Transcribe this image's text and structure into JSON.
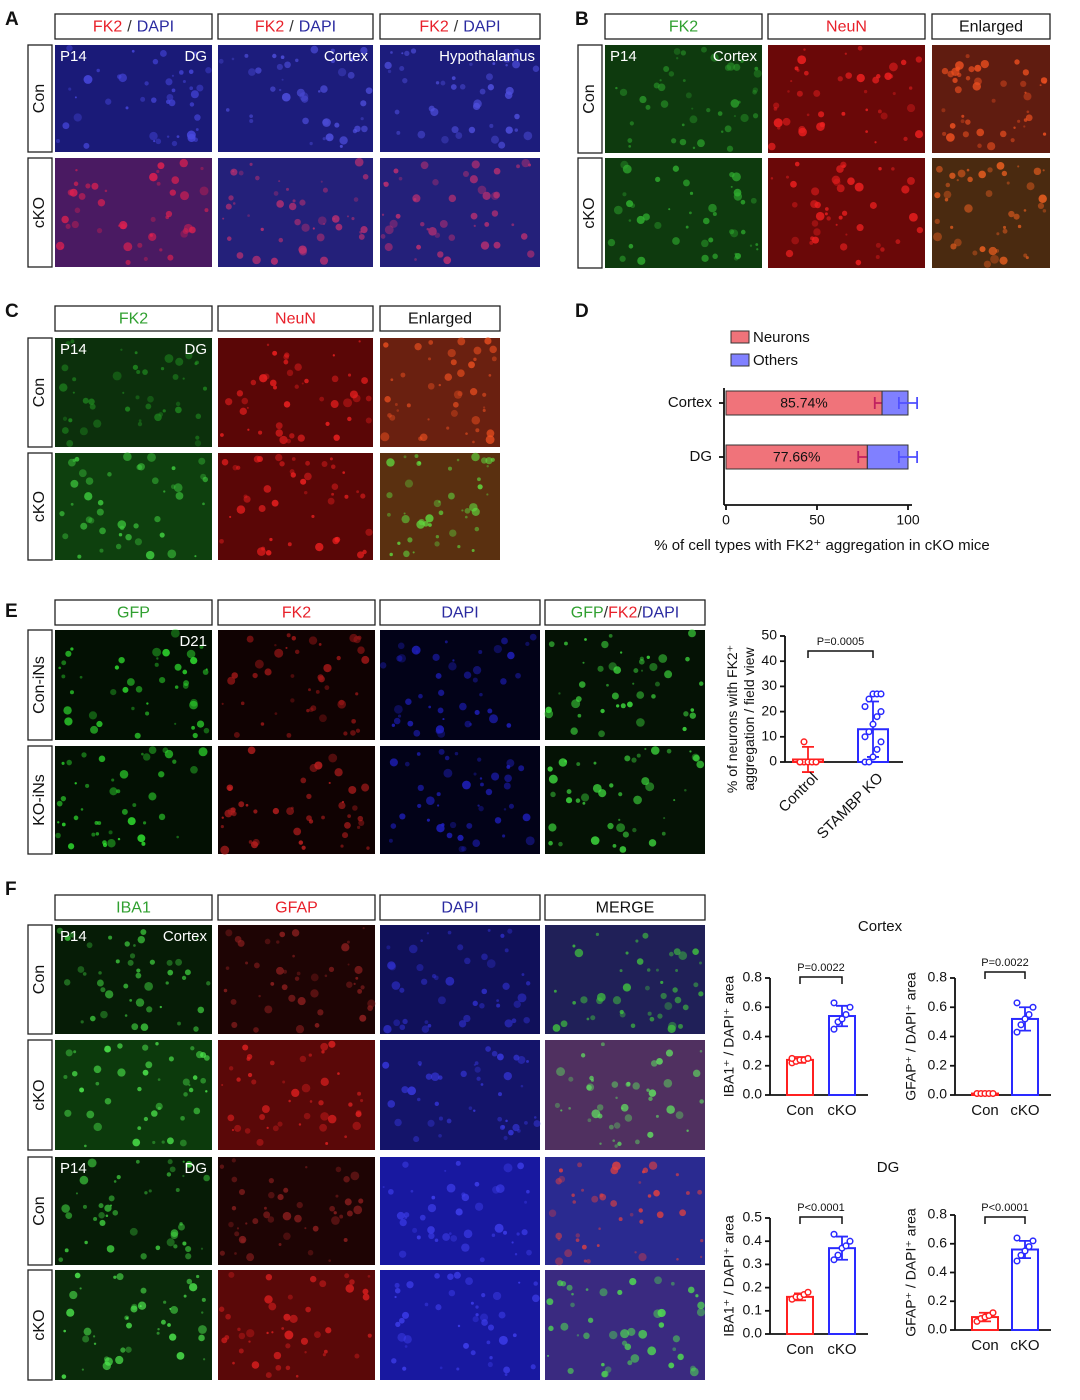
{
  "panels": [
    {
      "letter": "A",
      "headers": [
        [
          "FK2",
          "/",
          "DAPI"
        ],
        [
          "FK2",
          "/",
          "DAPI"
        ],
        [
          "FK2",
          "/",
          "DAPI"
        ]
      ],
      "rows": [
        "Con",
        "cKO"
      ],
      "image_labels": [
        "P14",
        "DG",
        "Cortex",
        "Hypothalamus"
      ]
    },
    {
      "letter": "B",
      "headers": [
        [
          "FK2"
        ],
        [
          "NeuN"
        ],
        [
          "Enlarged"
        ]
      ],
      "rows": [
        "Con",
        "cKO"
      ],
      "image_labels": [
        "P14",
        "Cortex"
      ]
    },
    {
      "letter": "C",
      "headers": [
        [
          "FK2"
        ],
        [
          "NeuN"
        ],
        [
          "Enlarged"
        ]
      ],
      "rows": [
        "Con",
        "cKO"
      ],
      "image_labels": [
        "P14",
        "DG"
      ]
    },
    {
      "letter": "D"
    },
    {
      "letter": "E",
      "headers": [
        [
          "GFP"
        ],
        [
          "FK2"
        ],
        [
          "DAPI"
        ],
        [
          "GFP",
          "/",
          "FK2",
          "/",
          "DAPI"
        ]
      ],
      "rows": [
        "Con-iNs",
        "KO-iNs"
      ],
      "image_labels": [
        "D21"
      ]
    },
    {
      "letter": "F",
      "headers": [
        [
          "IBA1"
        ],
        [
          "GFAP"
        ],
        [
          "DAPI"
        ],
        [
          "MERGE"
        ]
      ],
      "rows": [
        "Con",
        "cKO",
        "Con",
        "cKO"
      ],
      "image_labels": [
        "P14",
        "Cortex",
        "P14",
        "DG"
      ],
      "chart_titles": [
        "Cortex",
        "DG"
      ]
    }
  ],
  "chart_data": [
    {
      "type": "barh",
      "categories": [
        "Cortex",
        "DG"
      ],
      "series": [
        {
          "name": "Neurons",
          "color": "#f0737a",
          "values": [
            85.74,
            77.66
          ],
          "errors": [
            4,
            5
          ],
          "value_labels": [
            "85.74%",
            "77.66%"
          ]
        },
        {
          "name": "Others",
          "color": "#8080ff",
          "values": [
            14.26,
            22.34
          ],
          "errors": [
            5,
            5
          ]
        }
      ],
      "xlim": [
        0,
        100
      ],
      "xticks": [
        0,
        50,
        100
      ],
      "xlabel": "% of cell types with FK2⁺ aggregation in cKO mice"
    },
    {
      "type": "bar",
      "categories": [
        "Control",
        "STAMBP KO"
      ],
      "values": [
        1,
        13
      ],
      "errors": [
        5,
        11
      ],
      "colors": [
        "#ff2020",
        "#2a2aff"
      ],
      "points": [
        [
          0,
          0,
          0,
          0,
          0,
          0,
          0,
          0,
          0,
          0,
          0,
          8
        ],
        [
          0,
          0,
          2,
          5,
          8,
          10,
          12,
          15,
          18,
          20,
          22,
          25,
          27,
          27,
          27
        ]
      ],
      "ylim": [
        0,
        50
      ],
      "yticks": [
        0,
        10,
        20,
        30,
        40,
        50
      ],
      "ylabel": [
        "% of neurons with FK2⁺",
        "aggregation / field view"
      ],
      "annotation": "P=0.0005"
    },
    {
      "type": "bar",
      "categories": [
        "Con",
        "cKO"
      ],
      "values": [
        0.24,
        0.54
      ],
      "errors": [
        0.02,
        0.07
      ],
      "colors": [
        "#ff2020",
        "#2a2aff"
      ],
      "points": [
        [
          0.22,
          0.23,
          0.24,
          0.24,
          0.25,
          0.25
        ],
        [
          0.45,
          0.5,
          0.52,
          0.55,
          0.6,
          0.63
        ]
      ],
      "ylim": [
        0,
        0.8
      ],
      "yticks": [
        {
          "value": 0,
          "label": "0.0"
        },
        0.2,
        0.4,
        0.6,
        0.8
      ],
      "ylabel": [
        "IBA1⁺ / DAPI⁺ area"
      ],
      "annotation": "P=0.0022"
    },
    {
      "type": "bar",
      "categories": [
        "Con",
        "cKO"
      ],
      "values": [
        0.01,
        0.52
      ],
      "errors": [
        0.005,
        0.08
      ],
      "colors": [
        "#ff2020",
        "#2a2aff"
      ],
      "points": [
        [
          0.01,
          0.01,
          0.01,
          0.01,
          0.01
        ],
        [
          0.43,
          0.48,
          0.52,
          0.55,
          0.6,
          0.63
        ]
      ],
      "ylim": [
        0,
        0.8
      ],
      "yticks": [
        {
          "value": 0,
          "label": "0.0"
        },
        0.2,
        0.4,
        0.6,
        0.8
      ],
      "ylabel": [
        "GFAP⁺ / DAPI⁺ area"
      ],
      "annotation": "P=0.0022"
    },
    {
      "type": "bar",
      "categories": [
        "Con",
        "cKO"
      ],
      "values": [
        0.16,
        0.37
      ],
      "errors": [
        0.015,
        0.05
      ],
      "colors": [
        "#ff2020",
        "#2a2aff"
      ],
      "points": [
        [
          0.15,
          0.16,
          0.16,
          0.17,
          0.18
        ],
        [
          0.32,
          0.34,
          0.37,
          0.38,
          0.4,
          0.43
        ]
      ],
      "ylim": [
        0,
        0.5
      ],
      "yticks": [
        {
          "value": 0,
          "label": "0.0"
        },
        0.1,
        0.2,
        0.3,
        0.4,
        0.5
      ],
      "ylabel": [
        "IBA1⁺ / DAPI⁺ area"
      ],
      "annotation": "P<0.0001"
    },
    {
      "type": "bar",
      "categories": [
        "Con",
        "cKO"
      ],
      "values": [
        0.09,
        0.56
      ],
      "errors": [
        0.03,
        0.06
      ],
      "colors": [
        "#ff2020",
        "#2a2aff"
      ],
      "points": [
        [
          0.06,
          0.08,
          0.09,
          0.1,
          0.12
        ],
        [
          0.48,
          0.52,
          0.55,
          0.58,
          0.62,
          0.64
        ]
      ],
      "ylim": [
        0,
        0.8
      ],
      "yticks": [
        {
          "value": 0,
          "label": "0.0"
        },
        0.2,
        0.4,
        0.6,
        0.8
      ],
      "ylabel": [
        "GFAP⁺ / DAPI⁺ area"
      ],
      "annotation": "P<0.0001"
    }
  ]
}
